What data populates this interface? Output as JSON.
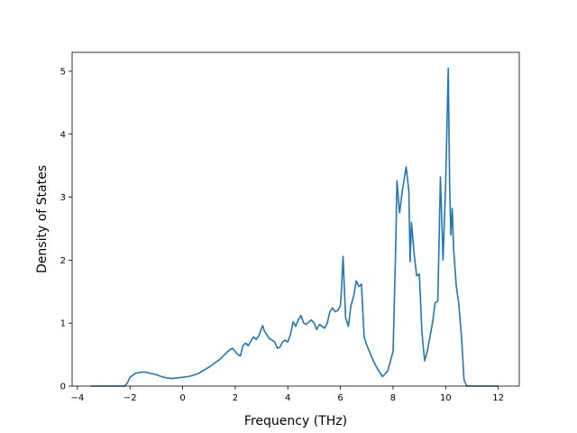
{
  "chart_data": {
    "type": "line",
    "title": "",
    "xlabel": "Frequency (THz)",
    "ylabel": "Density of States",
    "xlim": [
      -4.2,
      12.8
    ],
    "ylim": [
      0,
      5.3
    ],
    "xticks": [
      -4,
      -2,
      0,
      2,
      4,
      6,
      8,
      10,
      12
    ],
    "yticks": [
      0,
      1,
      2,
      3,
      4,
      5
    ],
    "grid": false,
    "legend": "none",
    "series": [
      {
        "color": "#1f77b4",
        "x": [
          -3.5,
          -2.2,
          -2.1,
          -2.0,
          -1.8,
          -1.6,
          -1.4,
          -1.2,
          -1.0,
          -0.8,
          -0.6,
          -0.4,
          -0.2,
          0.0,
          0.2,
          0.4,
          0.6,
          0.8,
          1.0,
          1.2,
          1.4,
          1.6,
          1.8,
          1.9,
          2.0,
          2.1,
          2.2,
          2.3,
          2.4,
          2.5,
          2.6,
          2.7,
          2.8,
          2.9,
          3.0,
          3.05,
          3.1,
          3.2,
          3.3,
          3.4,
          3.5,
          3.6,
          3.7,
          3.8,
          3.9,
          4.0,
          4.1,
          4.2,
          4.3,
          4.4,
          4.5,
          4.6,
          4.7,
          4.8,
          4.9,
          5.0,
          5.1,
          5.2,
          5.3,
          5.4,
          5.5,
          5.6,
          5.7,
          5.8,
          5.9,
          6.0,
          6.05,
          6.1,
          6.2,
          6.3,
          6.4,
          6.5,
          6.6,
          6.7,
          6.8,
          6.9,
          7.0,
          7.2,
          7.4,
          7.6,
          7.8,
          8.0,
          8.1,
          8.15,
          8.25,
          8.35,
          8.5,
          8.6,
          8.65,
          8.7,
          8.8,
          8.9,
          9.0,
          9.1,
          9.2,
          9.3,
          9.5,
          9.6,
          9.7,
          9.8,
          9.9,
          10.0,
          10.1,
          10.15,
          10.2,
          10.25,
          10.3,
          10.4,
          10.5,
          10.6,
          10.7,
          10.8,
          11.0,
          12.0
        ],
        "y": [
          0.0,
          0.0,
          0.05,
          0.14,
          0.2,
          0.22,
          0.22,
          0.2,
          0.18,
          0.15,
          0.13,
          0.12,
          0.13,
          0.14,
          0.15,
          0.17,
          0.2,
          0.25,
          0.3,
          0.36,
          0.42,
          0.5,
          0.58,
          0.6,
          0.55,
          0.5,
          0.48,
          0.65,
          0.68,
          0.64,
          0.72,
          0.78,
          0.74,
          0.8,
          0.92,
          0.96,
          0.88,
          0.82,
          0.75,
          0.73,
          0.7,
          0.6,
          0.62,
          0.7,
          0.73,
          0.7,
          0.82,
          1.02,
          0.95,
          1.05,
          1.12,
          1.0,
          0.98,
          1.02,
          1.05,
          1.0,
          0.9,
          0.98,
          0.95,
          0.92,
          1.0,
          1.18,
          1.24,
          1.18,
          1.2,
          1.28,
          1.62,
          2.06,
          1.08,
          0.95,
          1.28,
          1.42,
          1.67,
          1.58,
          1.62,
          0.78,
          0.65,
          0.45,
          0.28,
          0.15,
          0.24,
          0.55,
          2.2,
          3.26,
          2.75,
          3.1,
          3.48,
          3.1,
          1.98,
          2.6,
          2.1,
          1.75,
          1.78,
          0.85,
          0.4,
          0.55,
          1.0,
          1.32,
          1.35,
          3.32,
          2.0,
          3.2,
          5.05,
          3.2,
          2.4,
          2.82,
          2.2,
          1.6,
          1.3,
          0.8,
          0.1,
          0.0,
          0.0,
          0.0
        ]
      }
    ]
  }
}
